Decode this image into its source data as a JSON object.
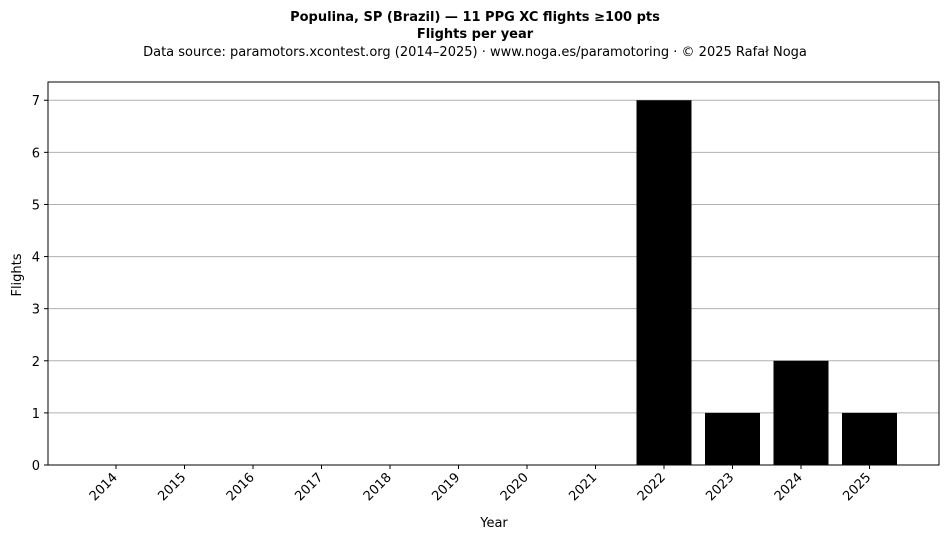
{
  "chart_data": {
    "type": "bar",
    "title": "Populina, SP (Brazil)  —  11 PPG XC flights ≥100 pts",
    "title_line2": "Flights per year",
    "subtitle": "Data source: paramotors.xcontest.org (2014–2025)  ·  www.noga.es/paramotoring  ·  © 2025 Rafał Noga",
    "xlabel": "Year",
    "ylabel": "Flights",
    "categories": [
      "2014",
      "2015",
      "2016",
      "2017",
      "2018",
      "2019",
      "2020",
      "2021",
      "2022",
      "2023",
      "2024",
      "2025"
    ],
    "values": [
      0,
      0,
      0,
      0,
      0,
      0,
      0,
      0,
      7,
      1,
      2,
      1
    ],
    "ylim": [
      0,
      7.35
    ],
    "yticks": [
      0,
      1,
      2,
      3,
      4,
      5,
      6,
      7
    ],
    "grid": "y",
    "bar_color": "#000000",
    "grid_color": "#b0b0b0"
  }
}
